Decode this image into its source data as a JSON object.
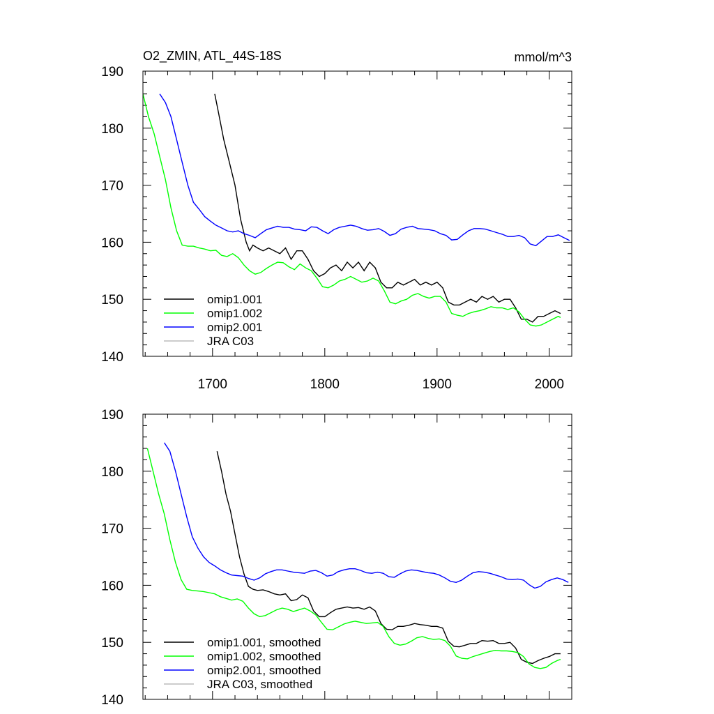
{
  "header": {
    "title": "O2_ZMIN, ATL_44S-18S",
    "units": "mmol/m^3"
  },
  "chart_data": [
    {
      "type": "line",
      "title": "O2_ZMIN, ATL_44S-18S",
      "units": "mmol/m^3",
      "xlim": [
        1638,
        2020
      ],
      "ylim": [
        140,
        190
      ],
      "xticks": [
        1700,
        1800,
        1900,
        2000
      ],
      "xtick_labels": [
        "1700",
        "1800",
        "1900",
        "2000"
      ],
      "yticks": [
        140,
        150,
        160,
        170,
        180,
        190
      ],
      "ytick_labels": [
        "140",
        "150",
        "160",
        "170",
        "180",
        "190"
      ],
      "grid": false,
      "legend_position": "bottom-left",
      "series": [
        {
          "name": "omip1.001",
          "color": "#000000",
          "x": [
            1702,
            1705,
            1710,
            1715,
            1720,
            1725,
            1730,
            1733,
            1736,
            1740,
            1745,
            1750,
            1755,
            1760,
            1765,
            1770,
            1775,
            1780,
            1785,
            1790,
            1795,
            1800,
            1805,
            1810,
            1815,
            1820,
            1825,
            1830,
            1835,
            1840,
            1845,
            1850,
            1855,
            1860,
            1865,
            1870,
            1875,
            1880,
            1885,
            1890,
            1895,
            1900,
            1905,
            1910,
            1915,
            1920,
            1925,
            1930,
            1935,
            1940,
            1945,
            1950,
            1955,
            1960,
            1965,
            1970,
            1975,
            1980,
            1985,
            1990,
            1995,
            2000,
            2005,
            2010
          ],
          "y": [
            186,
            183,
            178,
            174,
            170,
            164,
            160,
            158.5,
            159.5,
            159,
            158.5,
            159,
            158.5,
            158,
            159,
            157,
            158.5,
            158.5,
            157,
            155,
            154,
            154.5,
            155.5,
            156,
            155,
            156.5,
            155.5,
            156.5,
            155,
            156.5,
            155.5,
            153,
            152,
            152,
            153,
            152.5,
            153,
            153.5,
            152.5,
            153,
            152.5,
            153,
            152,
            149.5,
            149,
            149,
            149.5,
            150,
            149.5,
            150.5,
            150,
            150.5,
            149.5,
            150,
            150,
            148.5,
            146.5,
            146.5,
            146,
            147,
            147,
            147.5,
            148,
            147.5
          ]
        },
        {
          "name": "omip1.002",
          "color": "#00ff00",
          "x": [
            1638,
            1643,
            1648,
            1653,
            1658,
            1663,
            1668,
            1673,
            1678,
            1683,
            1688,
            1693,
            1698,
            1703,
            1708,
            1713,
            1718,
            1723,
            1728,
            1733,
            1738,
            1743,
            1748,
            1753,
            1758,
            1763,
            1768,
            1773,
            1778,
            1783,
            1788,
            1793,
            1798,
            1803,
            1808,
            1813,
            1818,
            1823,
            1828,
            1833,
            1838,
            1843,
            1848,
            1853,
            1858,
            1863,
            1868,
            1873,
            1878,
            1883,
            1888,
            1893,
            1898,
            1903,
            1908,
            1913,
            1918,
            1923,
            1928,
            1933,
            1938,
            1943,
            1948,
            1953,
            1958,
            1963,
            1968,
            1973,
            1978,
            1983,
            1988,
            1993,
            1998,
            2003,
            2008,
            2010
          ],
          "y": [
            186,
            182,
            179,
            175,
            171,
            166,
            162,
            159.5,
            159.3,
            159.3,
            159,
            158.8,
            158.5,
            158.6,
            157.7,
            157.5,
            158,
            157.3,
            156,
            155,
            154.4,
            154.7,
            155.4,
            156,
            156.5,
            156.4,
            155.7,
            155.2,
            156.2,
            155.5,
            155,
            153.7,
            152.2,
            152,
            152.5,
            153.2,
            153.5,
            154,
            153.5,
            153,
            153.2,
            153.7,
            153.2,
            151.5,
            149.5,
            149.2,
            149.7,
            150,
            150.7,
            151,
            150.5,
            150.2,
            150.5,
            150.5,
            149.5,
            147.5,
            147.2,
            147,
            147.5,
            147.8,
            148,
            148.3,
            148.7,
            148.5,
            148.5,
            148.2,
            148.5,
            147.8,
            146.5,
            145.5,
            145.3,
            145.5,
            146,
            146.5,
            147,
            146.8
          ]
        },
        {
          "name": "omip2.001",
          "color": "#0000ff",
          "x": [
            1653,
            1658,
            1663,
            1668,
            1673,
            1678,
            1683,
            1688,
            1693,
            1698,
            1703,
            1708,
            1713,
            1718,
            1723,
            1728,
            1733,
            1738,
            1743,
            1748,
            1753,
            1758,
            1763,
            1768,
            1773,
            1778,
            1783,
            1788,
            1793,
            1798,
            1803,
            1808,
            1813,
            1818,
            1823,
            1828,
            1833,
            1838,
            1843,
            1848,
            1853,
            1858,
            1863,
            1868,
            1873,
            1878,
            1883,
            1888,
            1893,
            1898,
            1903,
            1908,
            1913,
            1918,
            1923,
            1928,
            1933,
            1938,
            1943,
            1948,
            1953,
            1958,
            1963,
            1968,
            1973,
            1978,
            1983,
            1988,
            1993,
            1998,
            2003,
            2008,
            2013,
            2018
          ],
          "y": [
            186,
            184.5,
            182,
            178,
            174,
            170,
            167,
            165.8,
            164.5,
            163.7,
            163,
            162.5,
            162,
            161.8,
            162,
            161.5,
            161.2,
            160.8,
            161.5,
            162.2,
            162.5,
            162.8,
            162.6,
            162.6,
            162.3,
            162.2,
            162,
            162.7,
            162.6,
            162,
            161.5,
            162.2,
            162.6,
            162.8,
            163,
            162.8,
            162.4,
            162.1,
            162.2,
            162.4,
            161.9,
            161.2,
            161.5,
            162.3,
            162.6,
            162.8,
            162.4,
            162.3,
            162.2,
            162,
            161.5,
            161.2,
            160.4,
            160.5,
            161.3,
            162,
            162.4,
            162.4,
            162.3,
            162,
            161.7,
            161.4,
            161,
            161,
            161.2,
            160.8,
            159.7,
            159.4,
            160.2,
            161,
            161,
            161.3,
            160.8,
            160.3
          ]
        },
        {
          "name": "JRA C03",
          "color": "#bbbbbb",
          "x": [],
          "y": []
        }
      ]
    },
    {
      "type": "line",
      "xlim": [
        1638,
        2020
      ],
      "ylim": [
        140,
        190
      ],
      "xticks": [
        1700,
        1800,
        1900,
        2000
      ],
      "yticks": [
        140,
        150,
        160,
        170,
        180,
        190
      ],
      "ytick_labels": [
        "140",
        "150",
        "160",
        "170",
        "180",
        "190"
      ],
      "grid": false,
      "legend_position": "bottom-left",
      "series": [
        {
          "name": "omip1.001, smoothed",
          "color": "#000000",
          "x": [
            1704,
            1708,
            1712,
            1716,
            1720,
            1724,
            1728,
            1732,
            1736,
            1740,
            1745,
            1750,
            1755,
            1760,
            1765,
            1770,
            1775,
            1780,
            1785,
            1790,
            1795,
            1800,
            1805,
            1810,
            1815,
            1820,
            1825,
            1830,
            1835,
            1840,
            1845,
            1850,
            1855,
            1860,
            1865,
            1870,
            1875,
            1880,
            1885,
            1890,
            1895,
            1900,
            1905,
            1910,
            1915,
            1920,
            1925,
            1930,
            1935,
            1940,
            1945,
            1950,
            1955,
            1960,
            1965,
            1970,
            1975,
            1980,
            1985,
            1990,
            1995,
            2000,
            2005,
            2010
          ],
          "y": [
            183.5,
            180,
            176,
            173,
            169,
            165,
            162,
            159.8,
            159.3,
            159.1,
            159.2,
            158.9,
            158.5,
            158.3,
            158.5,
            157.3,
            157.5,
            158.3,
            157.8,
            155.5,
            154.5,
            154.5,
            155.2,
            155.8,
            156,
            156.2,
            156,
            156.1,
            155.8,
            156.2,
            155.5,
            153.3,
            152.3,
            152.2,
            152.8,
            152.8,
            153,
            153.3,
            153.1,
            153,
            152.8,
            152.8,
            152.5,
            150.2,
            149.3,
            149.2,
            149.5,
            149.8,
            149.8,
            150.3,
            150.2,
            150.3,
            149.8,
            149.8,
            150,
            149,
            147,
            146.5,
            146.3,
            146.8,
            147.2,
            147.5,
            148,
            148
          ]
        },
        {
          "name": "omip1.002, smoothed",
          "color": "#00ff00",
          "x": [
            1642,
            1647,
            1652,
            1657,
            1662,
            1667,
            1672,
            1677,
            1682,
            1687,
            1692,
            1697,
            1702,
            1707,
            1712,
            1717,
            1722,
            1727,
            1732,
            1737,
            1742,
            1747,
            1752,
            1757,
            1762,
            1767,
            1772,
            1777,
            1782,
            1787,
            1792,
            1797,
            1802,
            1807,
            1812,
            1817,
            1822,
            1827,
            1832,
            1837,
            1842,
            1847,
            1852,
            1857,
            1862,
            1867,
            1872,
            1877,
            1882,
            1887,
            1892,
            1897,
            1902,
            1907,
            1912,
            1917,
            1922,
            1927,
            1932,
            1937,
            1942,
            1947,
            1952,
            1957,
            1962,
            1967,
            1972,
            1977,
            1982,
            1987,
            1992,
            1997,
            2002,
            2007,
            2010
          ],
          "y": [
            184,
            180,
            176,
            172.5,
            168,
            164,
            161,
            159.3,
            159.1,
            159,
            158.9,
            158.7,
            158.5,
            158,
            157.7,
            157.4,
            157.6,
            157.2,
            156,
            155,
            154.5,
            154.7,
            155.2,
            155.7,
            156,
            155.8,
            155.4,
            155.7,
            156,
            155.5,
            154.8,
            153.5,
            152.3,
            152.2,
            152.7,
            153.2,
            153.5,
            153.7,
            153.5,
            153.3,
            153.4,
            153.5,
            152.8,
            151,
            149.8,
            149.5,
            149.7,
            150.2,
            150.8,
            151,
            150.7,
            150.5,
            150.6,
            150.3,
            149.3,
            147.6,
            147.2,
            147.1,
            147.5,
            147.8,
            148.1,
            148.4,
            148.6,
            148.5,
            148.5,
            148.4,
            148.2,
            147.5,
            146.2,
            145.6,
            145.4,
            145.6,
            146.3,
            146.8,
            147
          ]
        },
        {
          "name": "omip2.001, smoothed",
          "color": "#0000ff",
          "x": [
            1657,
            1662,
            1667,
            1672,
            1677,
            1682,
            1687,
            1692,
            1697,
            1702,
            1707,
            1712,
            1717,
            1722,
            1727,
            1732,
            1737,
            1742,
            1747,
            1752,
            1757,
            1762,
            1767,
            1772,
            1777,
            1782,
            1787,
            1792,
            1797,
            1802,
            1807,
            1812,
            1817,
            1822,
            1827,
            1832,
            1837,
            1842,
            1847,
            1852,
            1857,
            1862,
            1867,
            1872,
            1877,
            1882,
            1887,
            1892,
            1897,
            1902,
            1907,
            1912,
            1917,
            1922,
            1927,
            1932,
            1937,
            1942,
            1947,
            1952,
            1957,
            1962,
            1967,
            1972,
            1977,
            1982,
            1987,
            1992,
            1997,
            2002,
            2007,
            2012,
            2017
          ],
          "y": [
            185,
            183.5,
            180,
            176,
            172,
            168.5,
            166.5,
            165,
            164,
            163.4,
            162.7,
            162.2,
            161.8,
            161.7,
            161.6,
            161.2,
            160.9,
            161.3,
            162,
            162.4,
            162.7,
            162.7,
            162.5,
            162.3,
            162.2,
            162.1,
            162.5,
            162.6,
            162.2,
            161.6,
            161.8,
            162.4,
            162.7,
            162.9,
            162.9,
            162.6,
            162.2,
            162.1,
            162.3,
            162.1,
            161.5,
            161.4,
            162,
            162.5,
            162.7,
            162.6,
            162.4,
            162.2,
            162.1,
            161.8,
            161.3,
            160.7,
            160.5,
            160.9,
            161.6,
            162.2,
            162.4,
            162.3,
            162.1,
            161.8,
            161.5,
            161.1,
            161,
            161.1,
            160.9,
            160.1,
            159.5,
            159.8,
            160.6,
            161,
            161.3,
            161,
            160.5
          ]
        },
        {
          "name": "JRA C03, smoothed",
          "color": "#bbbbbb",
          "x": [],
          "y": []
        }
      ]
    }
  ]
}
